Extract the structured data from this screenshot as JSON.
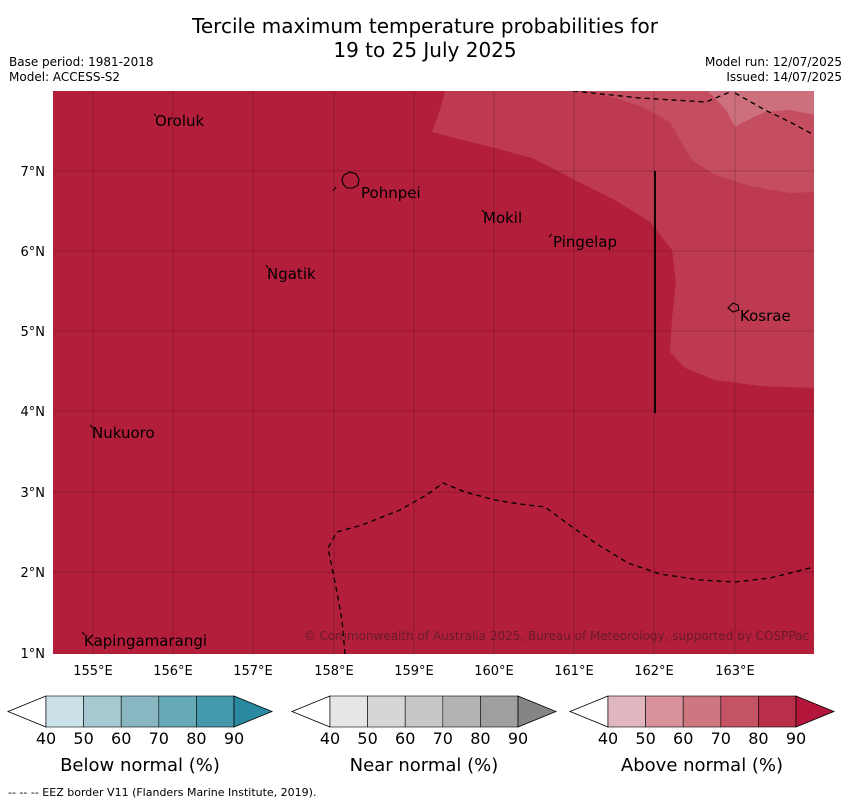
{
  "title": {
    "line1": "Tercile maximum temperature probabilities for",
    "line2": "19 to 25 July 2025"
  },
  "meta": {
    "base_period": "Base period: 1981-2018",
    "model": "Model: ACCESS-S2",
    "model_run": "Model run: 12/07/2025",
    "issued": "Issued: 14/07/2025"
  },
  "map": {
    "background_color": "#b31e3a",
    "region_colors": [
      "#bd3a50",
      "#c44d5f",
      "#cd6f7c"
    ],
    "lat_ticks": [
      "7°N",
      "6°N",
      "5°N",
      "4°N",
      "3°N",
      "2°N",
      "1°N"
    ],
    "lon_ticks": [
      "155°E",
      "156°E",
      "157°E",
      "158°E",
      "159°E",
      "160°E",
      "161°E",
      "162°E",
      "163°E"
    ],
    "places": [
      "Oroluk",
      "Pohnpei",
      "Mokil",
      "Pingelap",
      "Ngatik",
      "Kosrae",
      "Nukuoro",
      "Kapingamarangi"
    ],
    "copyright": "© Commonwealth of Australia 2025, Bureau of Meteorology, supported by COSPPac"
  },
  "colorbars": [
    {
      "label": "Below normal (%)",
      "ticks": [
        "40",
        "50",
        "60",
        "70",
        "80",
        "90"
      ],
      "colors": [
        "#ffffff",
        "#c9e1e7",
        "#a6c8d0",
        "#88b6c1",
        "#68a9b8",
        "#4599ad",
        "#2a8aa2"
      ]
    },
    {
      "label": "Near normal (%)",
      "ticks": [
        "40",
        "50",
        "60",
        "70",
        "80",
        "90"
      ],
      "colors": [
        "#ffffff",
        "#e6e6e6",
        "#d6d6d6",
        "#c7c7c7",
        "#b3b3b3",
        "#9f9f9f",
        "#858585"
      ]
    },
    {
      "label": "Above normal (%)",
      "ticks": [
        "40",
        "50",
        "60",
        "70",
        "80",
        "90"
      ],
      "colors": [
        "#ffffff",
        "#e1b7bf",
        "#d8929c",
        "#cd7780",
        "#c45364",
        "#b92f49",
        "#b3163a"
      ]
    }
  ],
  "footer": "-- -- -- EEZ border V11 (Flanders Marine Institute, 2019)."
}
